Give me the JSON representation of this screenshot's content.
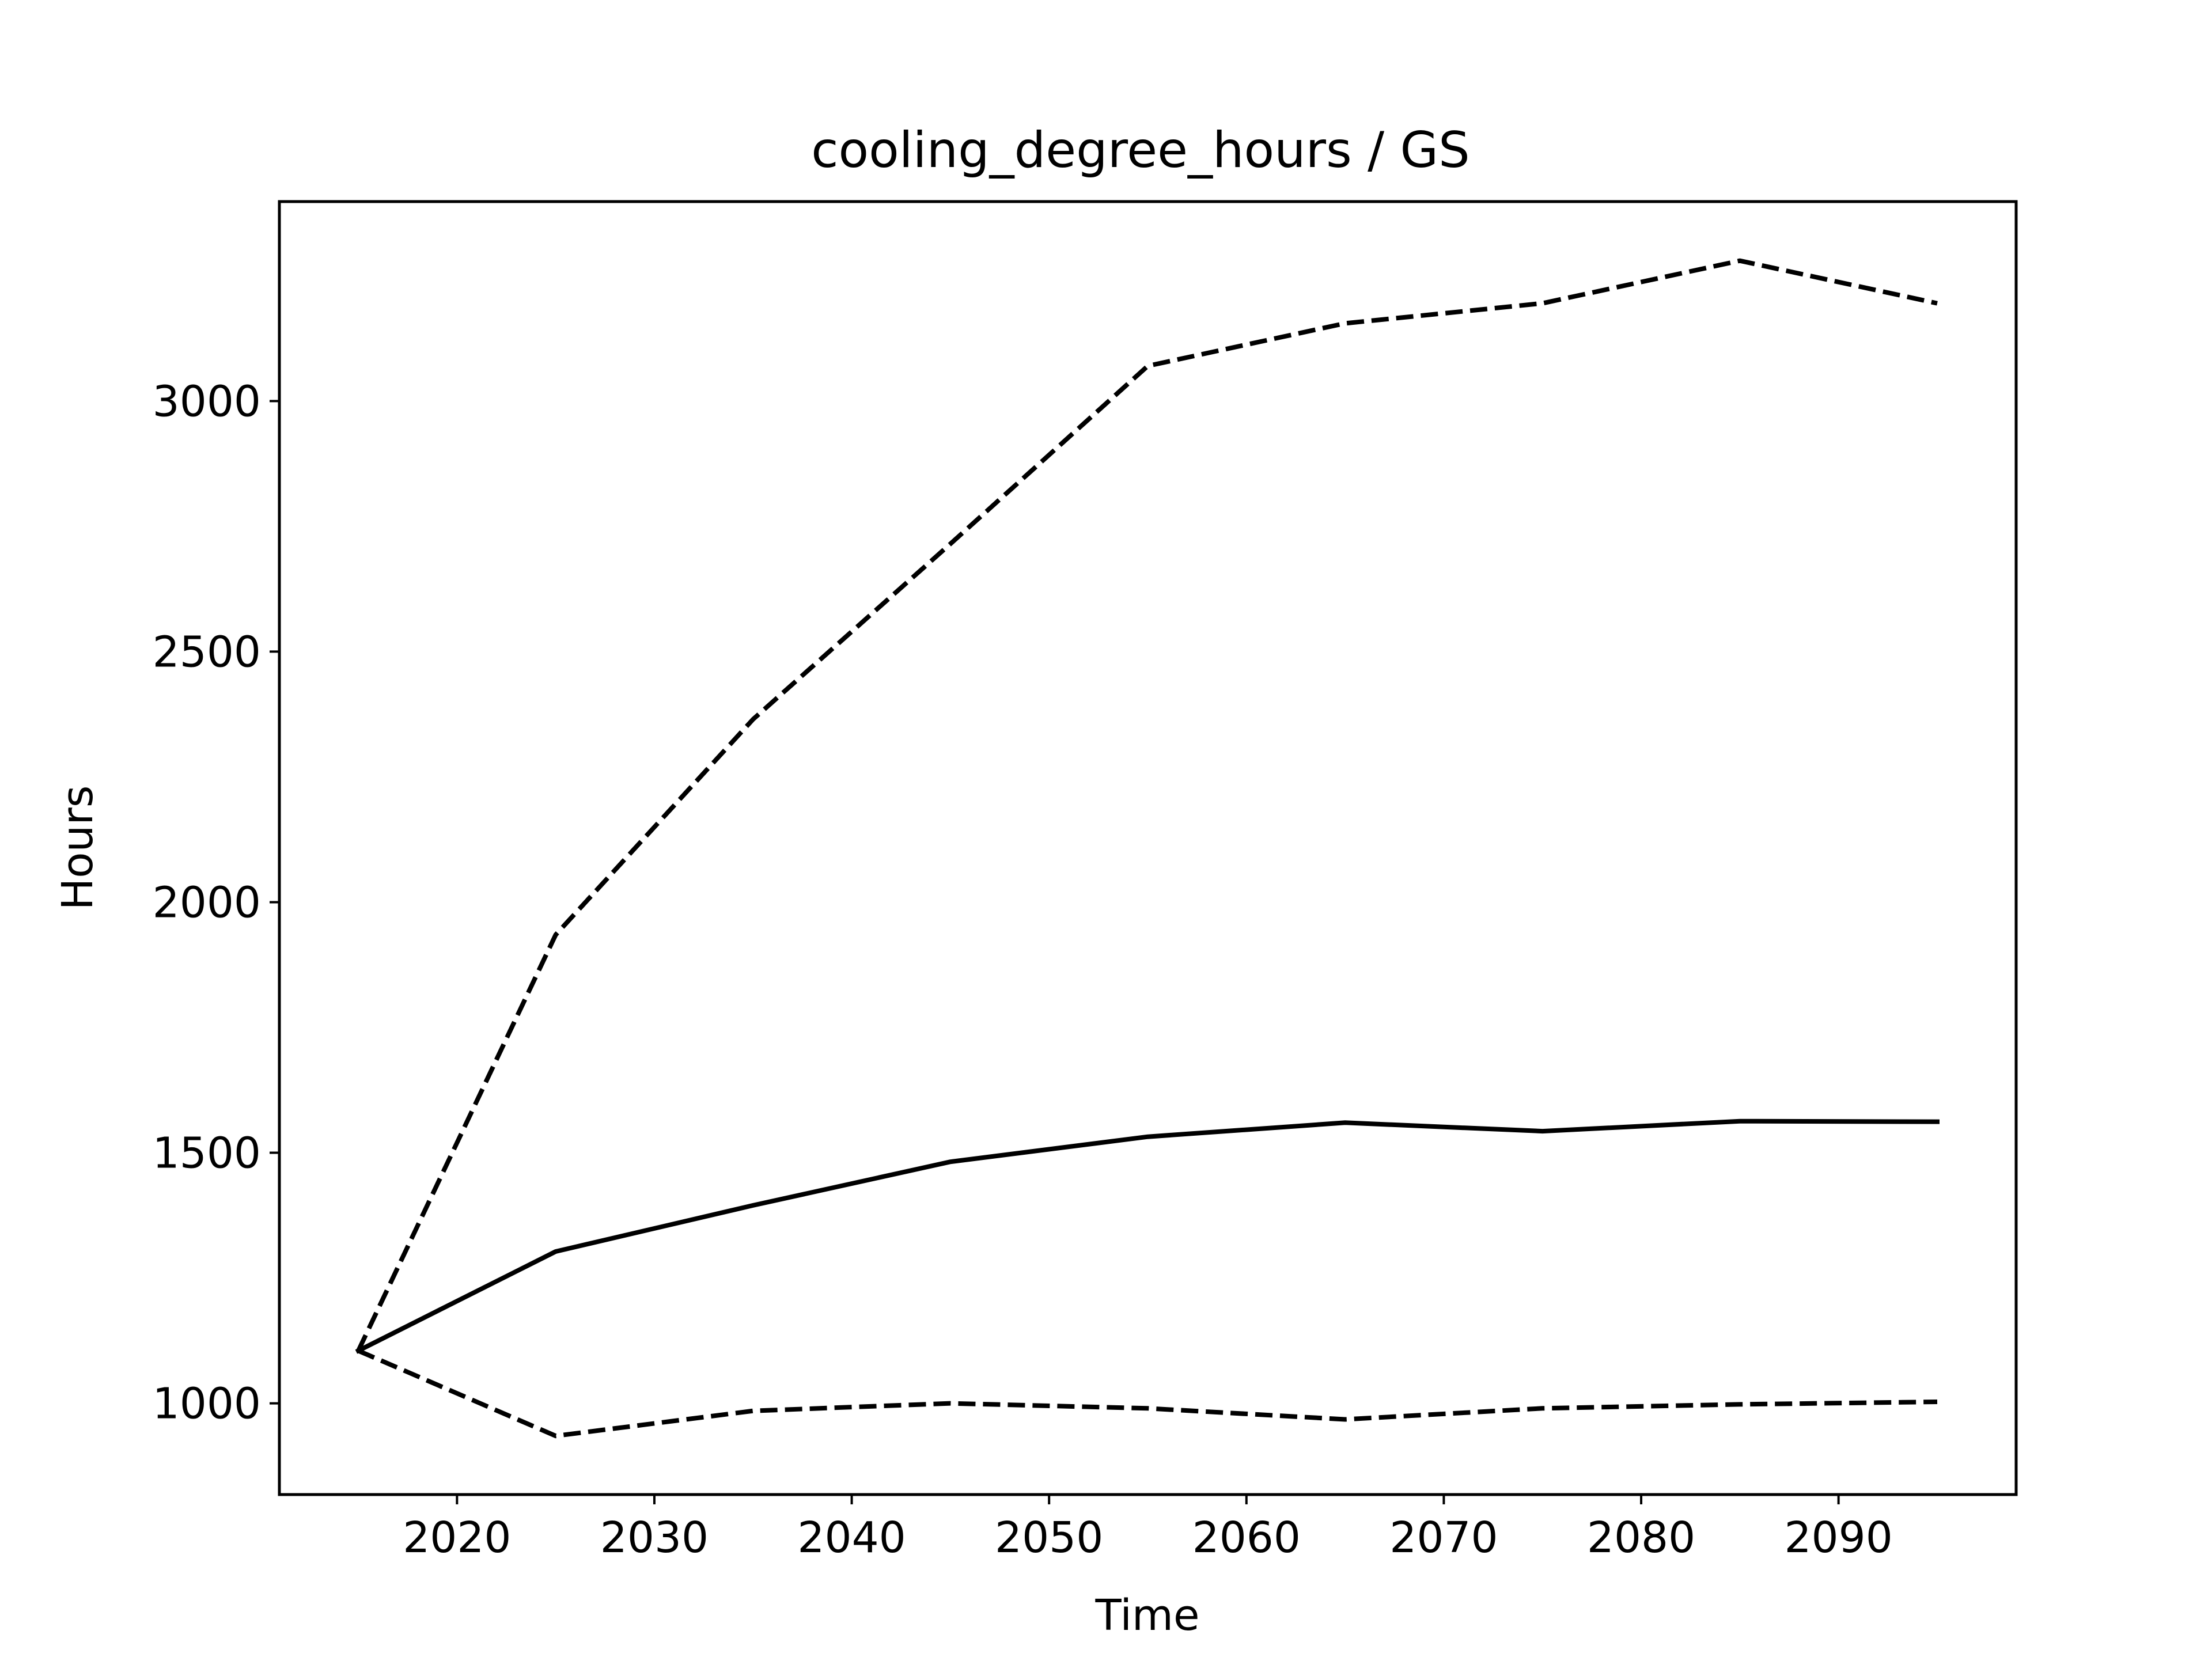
{
  "chart_data": {
    "type": "line",
    "title": "cooling_degree_hours / GS",
    "xlabel": "Time",
    "ylabel": "Hours",
    "xlim": [
      2011,
      2099
    ],
    "ylim": [
      818,
      3398
    ],
    "x_ticks": [
      2020,
      2030,
      2040,
      2050,
      2060,
      2070,
      2080,
      2090
    ],
    "y_ticks": [
      1000,
      1500,
      2000,
      2500,
      3000
    ],
    "grid": false,
    "legend": "none",
    "x": [
      2015,
      2025,
      2035,
      2045,
      2055,
      2065,
      2075,
      2085,
      2095
    ],
    "series": [
      {
        "style": "solid",
        "color": "#000000",
        "values": [
          1105,
          1303,
          1395,
          1482,
          1532,
          1560,
          1543,
          1563,
          1562
        ]
      },
      {
        "style": "dashed",
        "color": "#000000",
        "values": [
          1105,
          1935,
          2365,
          2715,
          3070,
          3155,
          3195,
          3280,
          3195
        ]
      },
      {
        "style": "dashed",
        "color": "#000000",
        "values": [
          1105,
          935,
          985,
          1000,
          990,
          968,
          990,
          998,
          1003
        ]
      }
    ]
  }
}
